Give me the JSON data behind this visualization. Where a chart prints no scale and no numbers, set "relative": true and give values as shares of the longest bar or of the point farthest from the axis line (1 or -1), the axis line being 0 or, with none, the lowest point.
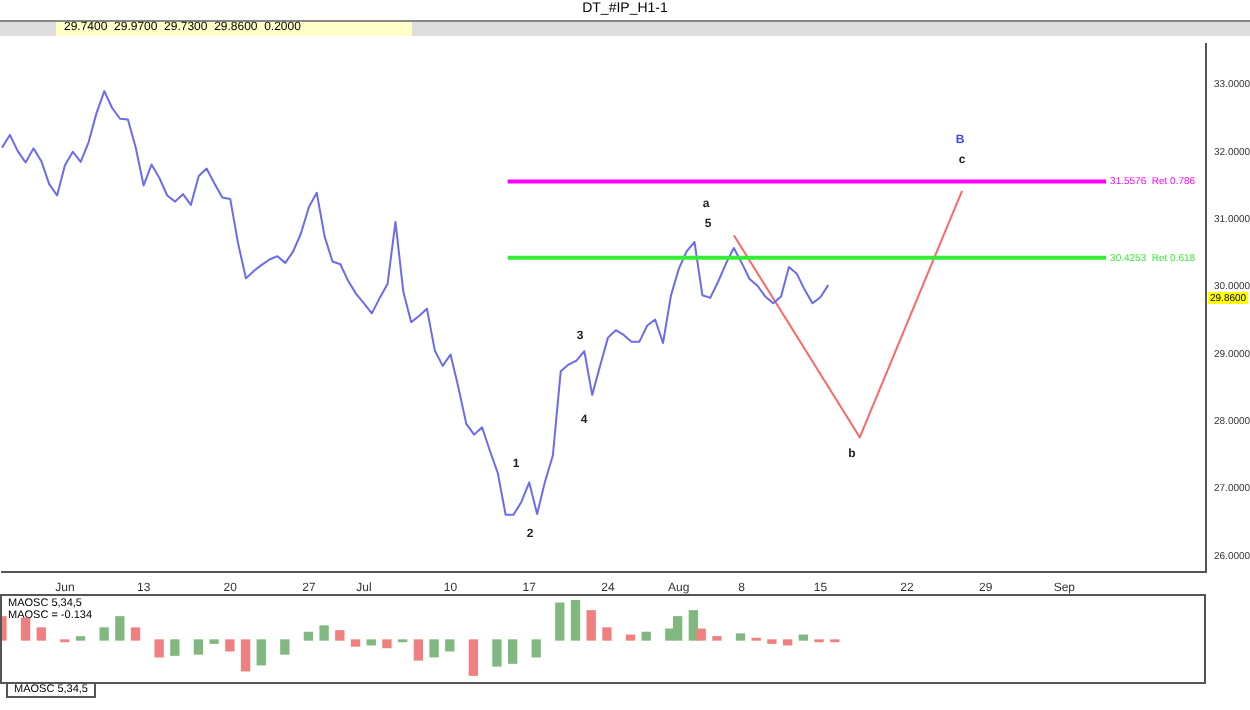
{
  "chart_data": [
    {
      "type": "line",
      "title": "DT_#IP_H1-1",
      "annotations": [
        "29.7400  29.9700  29.7300  29.8600  0.2000",
        "1",
        "2",
        "3",
        "4",
        "5",
        "a",
        "b",
        "c",
        "B",
        "29.8600"
      ],
      "categories": [
        null,
        null,
        null,
        null,
        null,
        null,
        null,
        null,
        "Jun",
        null,
        null,
        null,
        null,
        null,
        null,
        null,
        null,
        null,
        "13",
        null,
        null,
        null,
        null,
        null,
        null,
        null,
        null,
        null,
        null,
        "20",
        null,
        null,
        null,
        null,
        null,
        null,
        null,
        null,
        null,
        "27",
        null,
        null,
        null,
        null,
        null,
        null,
        "Jul",
        null,
        null,
        null,
        null,
        null,
        null,
        null,
        null,
        null,
        null,
        "10",
        null,
        null,
        null,
        null,
        null,
        null,
        null,
        null,
        null,
        "17",
        null,
        null,
        null,
        null,
        null,
        null,
        null,
        null,
        null,
        "24",
        null,
        null,
        null,
        null,
        null,
        null,
        null,
        null,
        "Aug",
        null,
        null,
        null,
        null,
        null,
        null,
        null,
        "8",
        null,
        null,
        null,
        null,
        null,
        null,
        null,
        null,
        null,
        "15",
        null,
        null,
        null,
        null,
        null,
        null,
        null,
        null,
        null,
        null,
        "22",
        null,
        null,
        null,
        null,
        null,
        null,
        null,
        null,
        null,
        "29",
        null,
        null,
        null,
        null,
        null,
        null,
        null,
        null,
        null,
        "Sep",
        null,
        null,
        null,
        null,
        null,
        null,
        null,
        null,
        null,
        null,
        null,
        null,
        null,
        null,
        null,
        null,
        null,
        null
      ],
      "series": [
        {
          "color": "#6b6bf0",
          "values": [
            32.06,
            32.25,
            32.01,
            31.84,
            32.05,
            31.86,
            31.52,
            31.35,
            31.8,
            32.0,
            31.85,
            32.14,
            32.57,
            32.9,
            32.65,
            32.49,
            32.48,
            32.06,
            31.5,
            31.81,
            31.61,
            31.35,
            31.26,
            31.37,
            31.21,
            31.64,
            31.75,
            31.53,
            31.32,
            31.3,
            30.64,
            30.12,
            30.23,
            30.32,
            30.4,
            30.45,
            30.35,
            30.52,
            30.79,
            31.18,
            31.39,
            30.74,
            30.37,
            30.33,
            30.08,
            29.89,
            29.75,
            29.6,
            29.83,
            30.04,
            30.96,
            29.92,
            29.47,
            29.56,
            29.67,
            29.05,
            28.82,
            28.99,
            28.5,
            27.96,
            27.8,
            27.91,
            27.56,
            27.23,
            26.61,
            26.61,
            26.8,
            27.09,
            26.62,
            27.1,
            27.49,
            28.74,
            28.84,
            28.9,
            29.04,
            28.39,
            28.82,
            29.24,
            29.35,
            29.28,
            29.18,
            29.18,
            29.42,
            29.51,
            29.16,
            29.86,
            30.26,
            30.52,
            30.66,
            29.87,
            29.83,
            30.07,
            30.34,
            30.57,
            30.35,
            30.11,
            30.01,
            29.85,
            29.75,
            29.85,
            30.29,
            30.19,
            29.95,
            29.75,
            29.84,
            30.02,
            null,
            null,
            null,
            null,
            null,
            null,
            null,
            null,
            null,
            null,
            null,
            null,
            null,
            null,
            null,
            null,
            null,
            null,
            null,
            null,
            null,
            null,
            null,
            null,
            null,
            null,
            null,
            null,
            null,
            null,
            null,
            null,
            null,
            null,
            null,
            null,
            null,
            null,
            null,
            null,
            null,
            null,
            null,
            null,
            null,
            null,
            null,
            null
          ]
        },
        {
          "color": "#ff6666",
          "values": [
            null,
            null,
            null,
            null,
            null,
            null,
            null,
            null,
            null,
            null,
            null,
            null,
            null,
            null,
            null,
            null,
            null,
            null,
            null,
            null,
            null,
            null,
            null,
            null,
            null,
            null,
            null,
            null,
            null,
            null,
            null,
            null,
            null,
            null,
            null,
            null,
            null,
            null,
            null,
            null,
            null,
            null,
            null,
            null,
            null,
            null,
            null,
            null,
            null,
            null,
            null,
            null,
            null,
            null,
            null,
            null,
            null,
            null,
            null,
            null,
            null,
            null,
            null,
            null,
            null,
            null,
            null,
            null,
            null,
            null,
            null,
            null,
            null,
            null,
            null,
            null,
            null,
            null,
            null,
            null,
            null,
            null,
            null,
            null,
            null,
            null,
            null,
            null,
            null,
            null,
            null,
            null,
            null,
            30.76,
            null,
            null,
            null,
            null,
            null,
            null,
            null,
            null,
            null,
            null,
            null,
            null,
            null,
            null,
            null,
            27.76,
            null,
            null,
            null,
            null,
            null,
            null,
            null,
            null,
            null,
            null,
            null,
            null,
            31.42,
            null,
            null,
            null,
            null,
            null,
            null,
            null,
            null,
            null,
            null,
            null,
            null,
            null,
            null,
            null,
            null,
            null,
            null,
            null,
            null,
            null,
            null,
            null,
            null,
            null,
            null,
            null,
            null,
            null,
            null,
            null
          ]
        }
      ],
      "ylim": [
        25.76,
        33.6
      ],
      "yticks": [
        {
          "value": 26,
          "label": "26.0000"
        },
        {
          "value": 27,
          "label": "27.0000"
        },
        {
          "value": 28,
          "label": "28.0000"
        },
        {
          "value": 29,
          "label": "29.0000"
        },
        {
          "value": 30,
          "label": "30.0000"
        },
        {
          "value": 31,
          "label": "31.0000"
        },
        {
          "value": 32,
          "label": "32.0000"
        },
        {
          "value": 33,
          "label": "33.0000"
        }
      ],
      "ref_lines": [
        {
          "axis": "y",
          "value": 31.5576,
          "label": "31.5576  Ret 0.786",
          "color": "#ff00ff"
        },
        {
          "axis": "y",
          "value": 30.4253,
          "label": "30.4253  Ret 0.618",
          "color": "#33ee33"
        }
      ],
      "marker": "none",
      "grid": false,
      "legend": false
    },
    {
      "type": "bar",
      "title": "MAOSC 5,34,5",
      "relative": true,
      "tick_labels": false,
      "annotations": [
        "MAOSC = -0.134",
        "MAOSC 5,34,5"
      ],
      "categories": [
        null,
        null,
        null,
        null,
        null,
        null,
        null,
        null,
        null,
        null,
        null,
        null,
        null,
        null,
        null,
        null,
        null,
        null,
        null,
        null,
        null,
        null,
        null,
        null,
        null,
        null,
        null,
        null,
        null,
        null,
        null,
        null,
        null,
        null,
        null,
        null,
        null,
        null,
        null,
        null,
        null,
        null,
        null,
        null,
        null,
        null,
        null,
        null,
        null,
        null,
        null,
        null,
        null,
        null,
        null,
        null,
        null,
        null,
        null,
        null,
        null,
        null,
        null,
        null,
        null,
        null,
        null,
        null,
        null,
        null,
        null,
        null,
        null,
        null,
        null,
        null,
        null,
        null,
        null,
        null,
        null,
        null,
        null,
        null,
        null,
        null,
        null,
        null,
        null,
        null,
        null,
        null,
        null,
        null,
        null,
        null,
        null,
        null,
        null,
        null,
        null,
        null,
        null,
        null,
        null,
        null,
        null,
        null,
        null,
        null,
        null,
        null,
        null,
        null,
        null,
        null,
        null,
        null,
        null,
        null,
        null,
        null,
        null,
        null,
        null,
        null,
        null,
        null,
        null,
        null,
        null,
        null,
        null,
        null,
        null,
        null,
        null,
        null,
        null,
        null,
        null,
        null,
        null,
        null,
        null,
        null,
        null,
        null,
        null,
        null,
        null,
        null,
        null,
        null
      ],
      "values": [
        0.58,
        null,
        null,
        0.54,
        null,
        0.3,
        null,
        null,
        -0.04,
        null,
        0.08,
        null,
        null,
        0.3,
        null,
        0.58,
        null,
        0.3,
        null,
        null,
        -0.42,
        null,
        -0.38,
        null,
        null,
        -0.35,
        null,
        -0.08,
        null,
        -0.27,
        null,
        -0.77,
        null,
        -0.62,
        null,
        null,
        -0.35,
        null,
        null,
        0.19,
        null,
        0.35,
        null,
        0.23,
        null,
        -0.15,
        null,
        -0.12,
        null,
        -0.19,
        null,
        -0.04,
        null,
        -0.5,
        null,
        -0.42,
        null,
        -0.27,
        null,
        null,
        -0.88,
        null,
        null,
        -0.65,
        null,
        -0.58,
        null,
        null,
        -0.42,
        null,
        null,
        0.92,
        null,
        1,
        null,
        0.73,
        null,
        0.3,
        null,
        null,
        0.12,
        null,
        0.19,
        null,
        null,
        0.27,
        0.58,
        null,
        0.73,
        0.27,
        null,
        0.08,
        null,
        null,
        0.15,
        null,
        0.04,
        null,
        -0.08,
        null,
        -0.12,
        null,
        0.12,
        null,
        -0.04,
        null,
        -0.04,
        null,
        null,
        null,
        null,
        null,
        null,
        null,
        null,
        null,
        null,
        null,
        null,
        null,
        null,
        null,
        null,
        null,
        null,
        null,
        null,
        null,
        null,
        null,
        null,
        null,
        null,
        null,
        null,
        null,
        null,
        null,
        null,
        null,
        null,
        null,
        null,
        null,
        null,
        null,
        null,
        null,
        null,
        null,
        null,
        null,
        null,
        null
      ],
      "colors": [
        "#f08080",
        null,
        null,
        "#f08080",
        null,
        "#f08080",
        null,
        null,
        "#f08080",
        null,
        "#80b880",
        null,
        null,
        "#80b880",
        null,
        "#80b880",
        null,
        "#f08080",
        null,
        null,
        "#f08080",
        null,
        "#80b880",
        null,
        null,
        "#80b880",
        null,
        "#80b880",
        null,
        "#f08080",
        null,
        "#f08080",
        null,
        "#80b880",
        null,
        null,
        "#80b880",
        null,
        null,
        "#80b880",
        null,
        "#80b880",
        null,
        "#f08080",
        null,
        "#f08080",
        null,
        "#80b880",
        null,
        "#f08080",
        null,
        "#80b880",
        null,
        "#f08080",
        null,
        "#80b880",
        null,
        "#80b880",
        null,
        null,
        "#f08080",
        null,
        null,
        "#80b880",
        null,
        "#80b880",
        null,
        null,
        "#80b880",
        null,
        null,
        "#80b880",
        null,
        "#80b880",
        null,
        "#f08080",
        null,
        "#f08080",
        null,
        null,
        "#f08080",
        null,
        "#80b880",
        null,
        null,
        "#80b880",
        "#80b880",
        null,
        "#80b880",
        "#f08080",
        null,
        "#f08080",
        null,
        null,
        "#80b880",
        null,
        "#f08080",
        null,
        "#f08080",
        null,
        "#f08080",
        null,
        "#80b880",
        null,
        "#f08080",
        null,
        "#f08080",
        null,
        null,
        null,
        null,
        null,
        null,
        null,
        null,
        null,
        null,
        null,
        null,
        null,
        null,
        null,
        null,
        null,
        null,
        null,
        null,
        null,
        null,
        null,
        null,
        null,
        null,
        null,
        null,
        null,
        null,
        null,
        null,
        null,
        null,
        null,
        null,
        null,
        null,
        null,
        null,
        null,
        null,
        null,
        null,
        null,
        null,
        null
      ],
      "grid": false,
      "legend": false
    }
  ]
}
